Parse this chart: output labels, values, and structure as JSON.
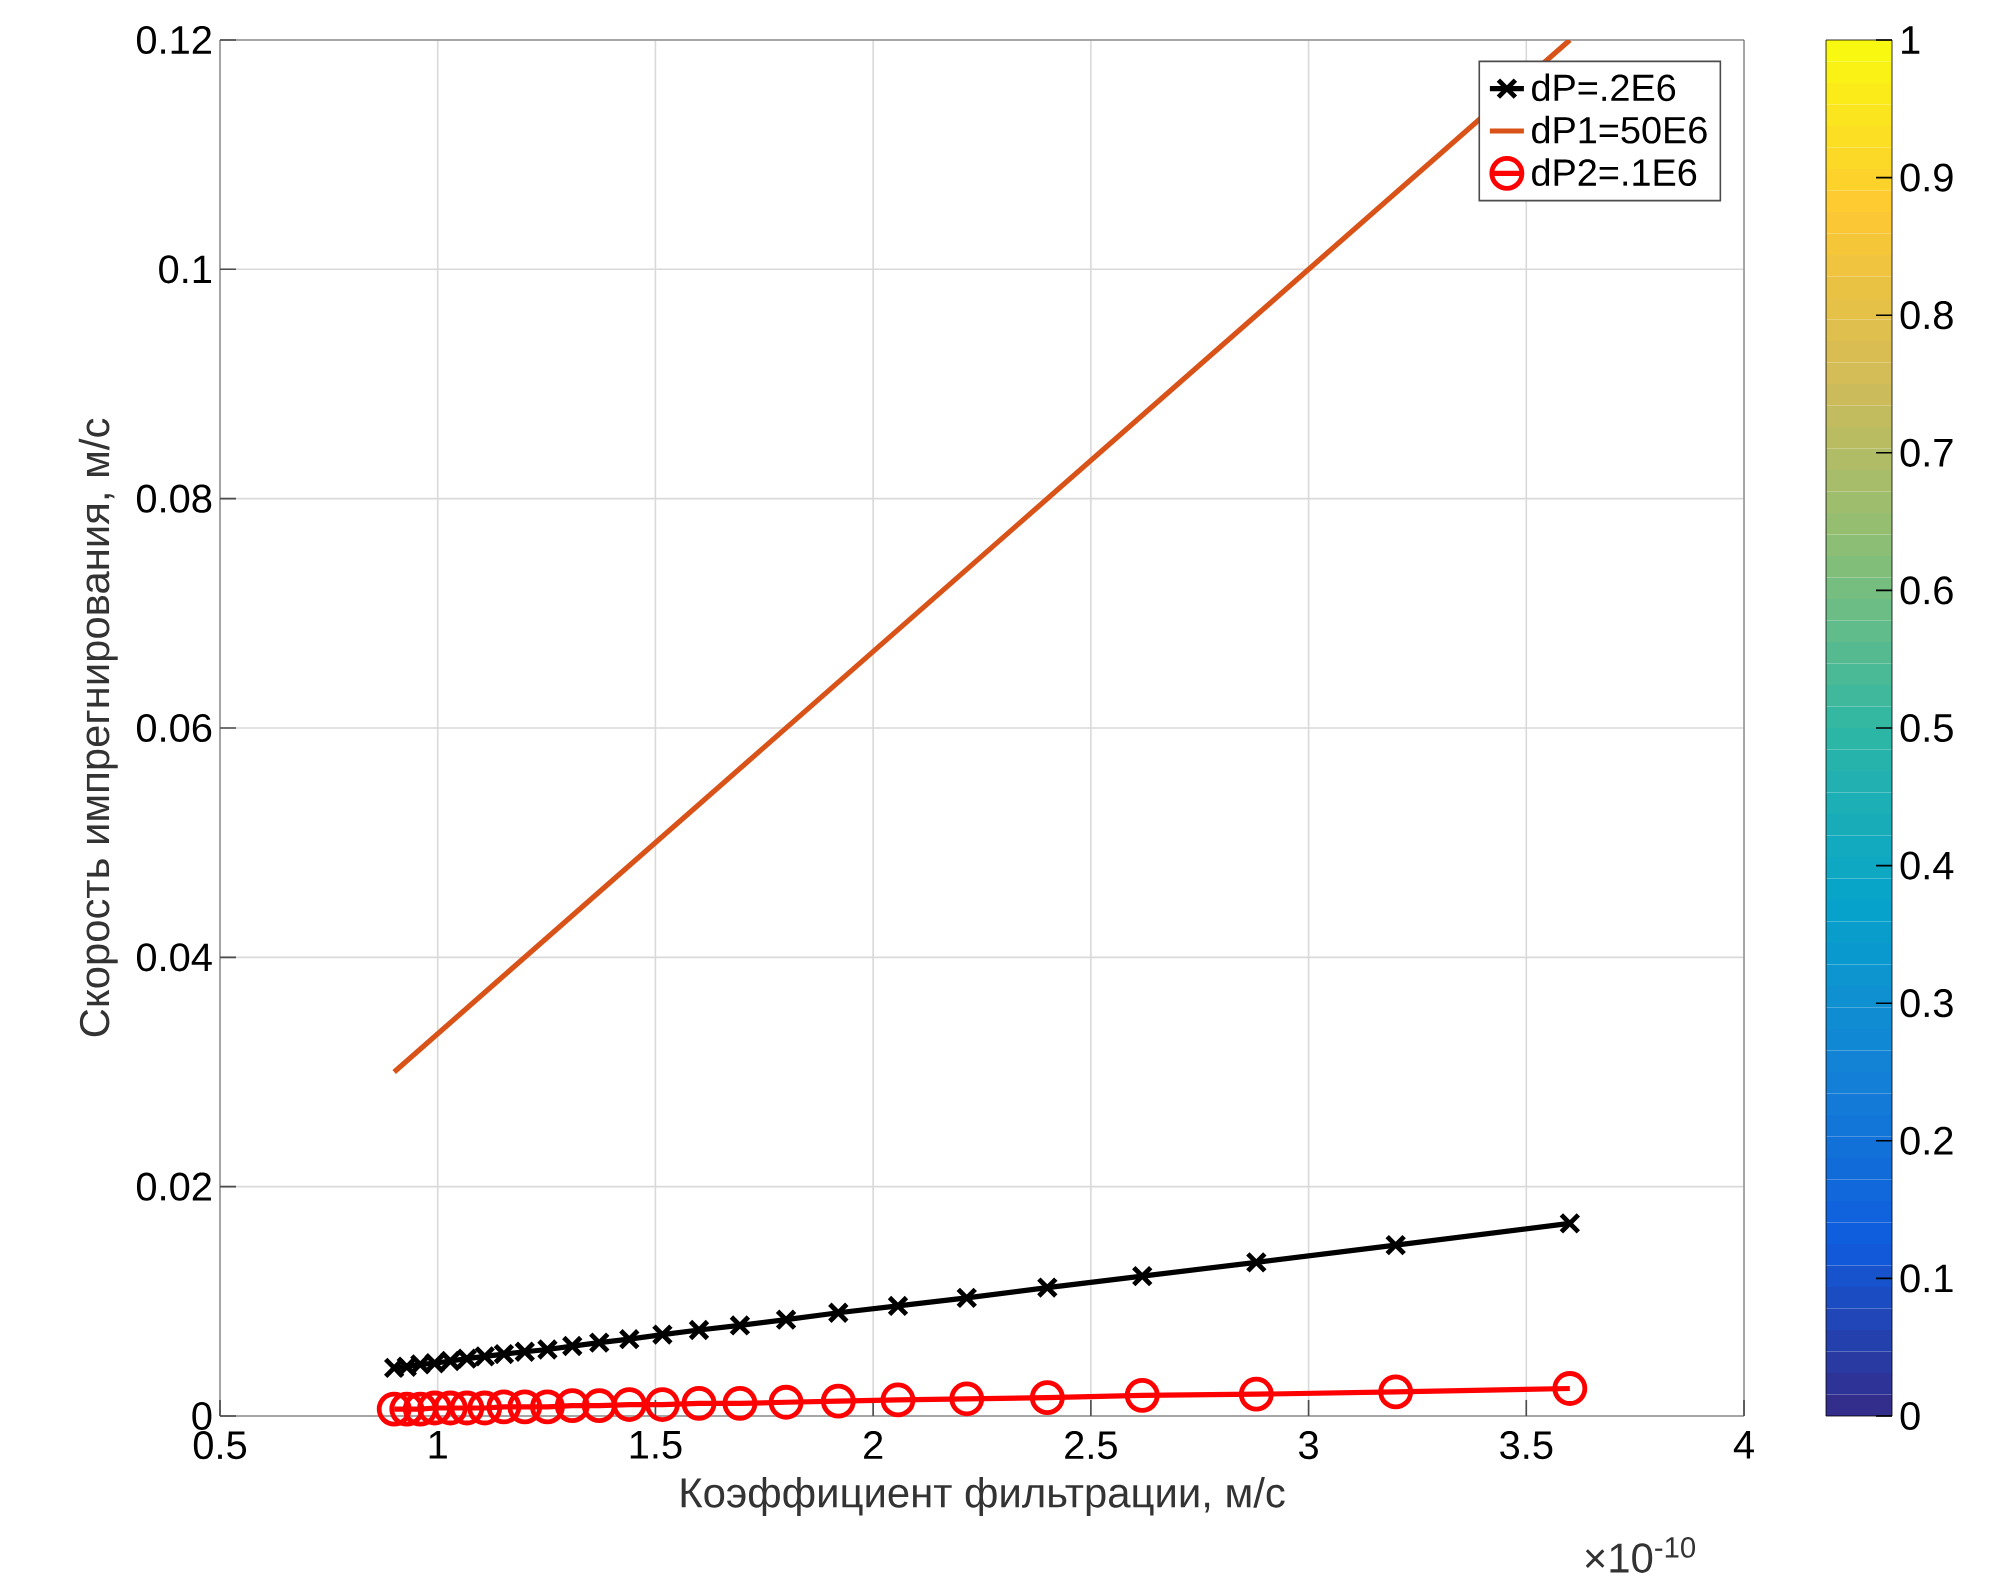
{
  "chart_data": {
    "type": "line",
    "xlabel": "Коэффициент фильтрации, м/с",
    "ylabel": "Скорость импрегнирования, м/с",
    "x": [
      0.9,
      0.929,
      0.96,
      0.993,
      1.029,
      1.067,
      1.108,
      1.152,
      1.2,
      1.252,
      1.309,
      1.371,
      1.44,
      1.516,
      1.6,
      1.694,
      1.8,
      1.92,
      2.057,
      2.215,
      2.4,
      2.618,
      2.88,
      3.2,
      3.6
    ],
    "series": [
      {
        "name": "dP=.2E6",
        "color": "#000000",
        "marker": "cross",
        "values": [
          0.0042,
          0.0043,
          0.0045,
          0.0046,
          0.0048,
          0.005,
          0.0052,
          0.0054,
          0.0056,
          0.0058,
          0.0061,
          0.0064,
          0.0067,
          0.0071,
          0.0075,
          0.0079,
          0.0084,
          0.009,
          0.0096,
          0.0103,
          0.0112,
          0.0122,
          0.0134,
          0.0149,
          0.0168
        ]
      },
      {
        "name": "dP1=50E6",
        "color": "#d95319",
        "marker": "none",
        "x": [
          0.9,
          3.6
        ],
        "values": [
          0.03,
          0.12
        ]
      },
      {
        "name": "dP2=.1E6",
        "color": "#ff0000",
        "marker": "circle",
        "values": [
          0.0006,
          0.0006,
          0.0006,
          0.0007,
          0.0007,
          0.0007,
          0.0007,
          0.0008,
          0.0008,
          0.0008,
          0.0009,
          0.0009,
          0.001,
          0.001,
          0.0011,
          0.0011,
          0.0012,
          0.0013,
          0.0014,
          0.0015,
          0.0016,
          0.0018,
          0.0019,
          0.0021,
          0.0024
        ]
      }
    ],
    "xlim": [
      0.5,
      4
    ],
    "xticks": [
      0.5,
      1,
      1.5,
      2,
      2.5,
      3,
      3.5,
      4
    ],
    "ylim": [
      0,
      0.12
    ],
    "yticks": [
      0,
      0.02,
      0.04,
      0.06,
      0.08,
      0.1,
      0.12
    ],
    "grid": true,
    "legend": "top right",
    "clim": [
      0,
      1
    ],
    "cticks": [
      0,
      0.1,
      0.2,
      0.3,
      0.4,
      0.5,
      0.6,
      0.7,
      0.8,
      0.9,
      1
    ],
    "annotations": [
      "×10$^{-10}$"
    ]
  }
}
